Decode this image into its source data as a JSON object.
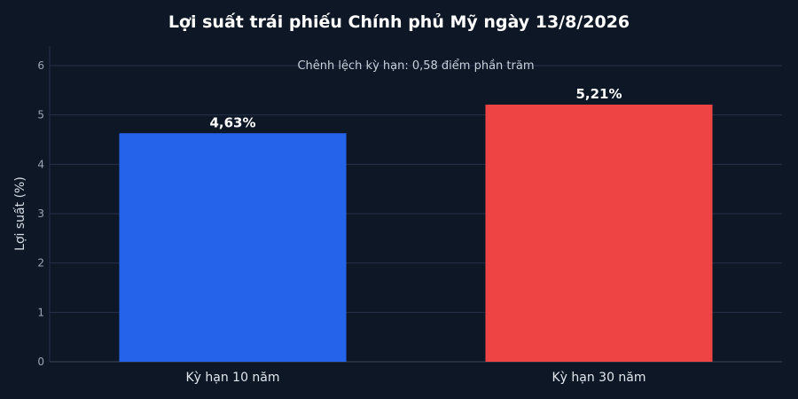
{
  "chart_data": {
    "type": "bar",
    "title": "Lợi suất trái phiếu Chính phủ Mỹ ngày 13/8/2026",
    "annotation": "Chênh lệch kỳ hạn: 0,58 điểm phần trăm",
    "categories": [
      "Kỳ hạn 10 năm",
      "Kỳ hạn 30 năm"
    ],
    "values": [
      4.63,
      5.21
    ],
    "data_labels": [
      "4,63%",
      "5,21%"
    ],
    "colors": [
      "#2563eb",
      "#ef4444"
    ],
    "xlabel": "",
    "ylabel": "Lợi suất (%)",
    "ylim": [
      0,
      6.4
    ],
    "yticks": [
      0,
      1,
      2,
      3,
      4,
      5,
      6
    ],
    "grid": true,
    "legend": "none",
    "background": "#0d1726",
    "gridColor": "#25324a",
    "tickColor": "#9aa5b5"
  }
}
